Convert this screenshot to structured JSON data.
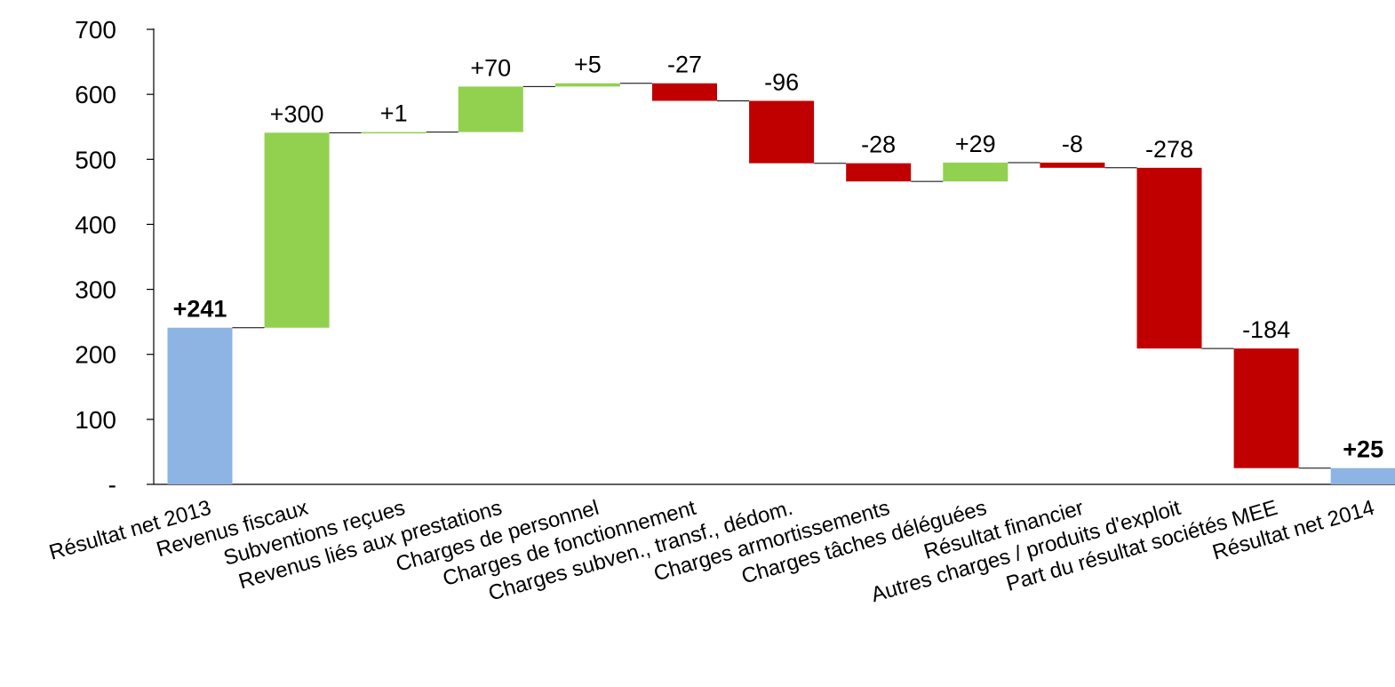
{
  "chart_data": {
    "type": "waterfall",
    "categories": [
      "Résultat net 2013",
      "Revenus fiscaux",
      "Subventions reçues",
      "Revenus liés aux prestations",
      "Charges de personnel",
      "Charges de fonctionnement",
      "Charges subven., transf., dédom.",
      "Charges armortissements",
      "Charges tâches déléguées",
      "Résultat financier",
      "Autres charges / produits d'exploit",
      "Part du résultat sociétés MEE",
      "Résultat net 2014"
    ],
    "values": [
      241,
      300,
      1,
      70,
      5,
      -27,
      -96,
      -28,
      29,
      -8,
      -278,
      -184,
      25
    ],
    "value_labels": [
      "+241",
      "+300",
      "+1",
      "+70",
      "+5",
      "-27",
      "-96",
      "-28",
      "+29",
      "-8",
      "-278",
      "-184",
      "+25"
    ],
    "kinds": [
      "total",
      "delta",
      "delta",
      "delta",
      "delta",
      "delta",
      "delta",
      "delta",
      "delta",
      "delta",
      "delta",
      "delta",
      "total"
    ],
    "ylim": [
      0,
      700
    ],
    "y_ticks": [
      0,
      100,
      200,
      300,
      400,
      500,
      600,
      700
    ],
    "y_tick_labels": [
      "-",
      "100",
      "200",
      "300",
      "400",
      "500",
      "600",
      "700"
    ],
    "colors": {
      "total": "#8DB4E2",
      "increase": "#92D050",
      "decrease": "#C00000",
      "connector": "#000000"
    },
    "grid": false,
    "legend": "none",
    "title": "",
    "xlabel": "",
    "ylabel": ""
  }
}
